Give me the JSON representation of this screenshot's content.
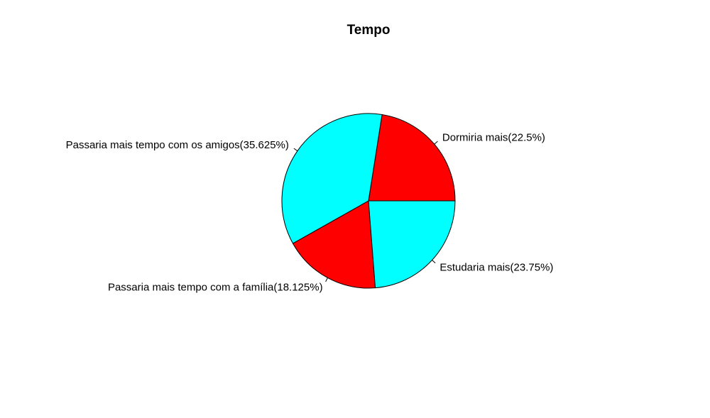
{
  "chart_data": {
    "type": "pie",
    "title": "Tempo",
    "slices": [
      {
        "label": "Dormiria mais(22.5%)",
        "value": 22.5,
        "color": "#FF0000"
      },
      {
        "label": "Passaria mais tempo com os amigos(35.625%)",
        "value": 35.625,
        "color": "#00FFFF"
      },
      {
        "label": "Passaria mais tempo com a família(18.125%)",
        "value": 18.125,
        "color": "#FF0000"
      },
      {
        "label": "Estudaria mais(23.75%)",
        "value": 23.75,
        "color": "#00FFFF"
      }
    ],
    "direction": "counterclockwise",
    "start_angle_deg": 0,
    "legend": "none"
  }
}
